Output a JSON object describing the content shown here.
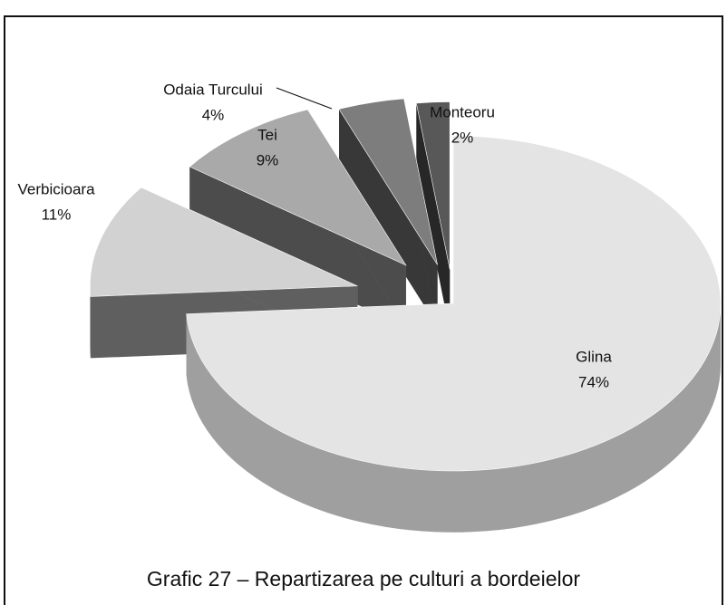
{
  "chart_data": {
    "type": "pie3d",
    "title": "Grafic 27 – Repartizarea pe culturi a bordeielor",
    "categories": [
      "Glina",
      "Verbicioara",
      "Tei",
      "Odaia Turcului",
      "Monteoru"
    ],
    "values": [
      74,
      11,
      9,
      4,
      2
    ],
    "value_labels": [
      "74%",
      "11%",
      "9%",
      "4%",
      "2%"
    ],
    "colors": [
      "#e4e4e4",
      "#d2d2d2",
      "#a9a9a9",
      "#7d7d7d",
      "#585858"
    ]
  }
}
